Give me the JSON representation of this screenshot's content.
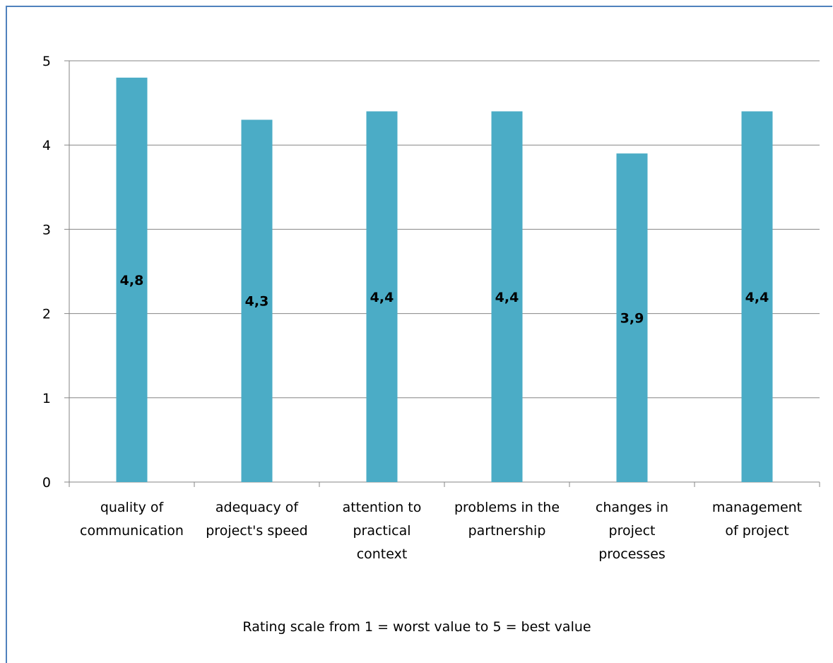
{
  "chart_data": {
    "type": "bar",
    "categories": [
      "quality of communication",
      "adequacy of project's speed",
      "attention to practical context",
      "problems in the partnership",
      "changes in project processes",
      "management of project"
    ],
    "category_lines": [
      [
        "quality of",
        "communication"
      ],
      [
        "adequacy of",
        "project's speed"
      ],
      [
        "attention to",
        "practical",
        "context"
      ],
      [
        "problems in the",
        "partnership"
      ],
      [
        "changes in",
        "project",
        "processes"
      ],
      [
        "management",
        "of project"
      ]
    ],
    "values": [
      4.8,
      4.3,
      4.4,
      4.4,
      3.9,
      4.4
    ],
    "data_labels": [
      "4,8",
      "4,3",
      "4,4",
      "4,4",
      "3,9",
      "4,4"
    ],
    "ylim": [
      0,
      5
    ],
    "yticks": [
      "0",
      "1",
      "2",
      "3",
      "4",
      "5"
    ],
    "grid": true,
    "bar_color": "#4bacc6",
    "note": "Rating scale from 1 = worst value to 5 = best value"
  }
}
